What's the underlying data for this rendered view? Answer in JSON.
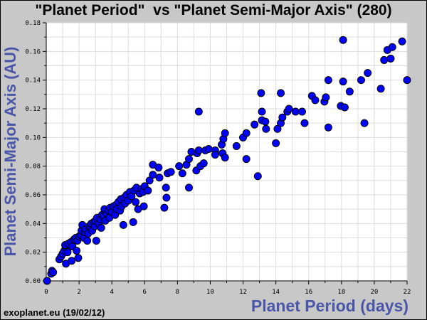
{
  "chart_data": {
    "type": "scatter",
    "title": "\"Planet Period\"  vs \"Planet Semi-Major Axis\" (280)",
    "xlabel": "Planet Period (days)",
    "ylabel": "Planet Semi-Major Axis (AU)",
    "xlim": [
      0,
      22
    ],
    "ylim": [
      0,
      0.18
    ],
    "grid": true,
    "xticks": [
      "0",
      "2",
      "4",
      "6",
      "8",
      "10",
      "12",
      "14",
      "16",
      "18",
      "20",
      "22"
    ],
    "yticks": [
      "0.00",
      "0.02",
      "0.04",
      "0.06",
      "0.08",
      "0.10",
      "0.12",
      "0.14",
      "0.16",
      "0.18"
    ],
    "marker_color": "#0000ff",
    "points": [
      [
        0.05,
        0.0
      ],
      [
        0.3,
        0.005
      ],
      [
        0.35,
        0.007
      ],
      [
        0.42,
        0.006
      ],
      [
        0.8,
        0.015
      ],
      [
        0.9,
        0.017
      ],
      [
        1.0,
        0.019
      ],
      [
        1.1,
        0.021
      ],
      [
        1.2,
        0.023
      ],
      [
        1.15,
        0.025
      ],
      [
        1.2,
        0.012
      ],
      [
        1.3,
        0.02
      ],
      [
        1.35,
        0.026
      ],
      [
        1.5,
        0.027
      ],
      [
        1.55,
        0.014
      ],
      [
        1.6,
        0.024
      ],
      [
        1.7,
        0.029
      ],
      [
        1.8,
        0.03
      ],
      [
        1.85,
        0.021
      ],
      [
        1.9,
        0.028
      ],
      [
        1.95,
        0.016
      ],
      [
        2.0,
        0.031
      ],
      [
        2.1,
        0.032
      ],
      [
        2.15,
        0.035
      ],
      [
        2.2,
        0.039
      ],
      [
        2.3,
        0.03
      ],
      [
        2.35,
        0.034
      ],
      [
        2.4,
        0.036
      ],
      [
        2.5,
        0.028
      ],
      [
        2.55,
        0.033
      ],
      [
        2.6,
        0.038
      ],
      [
        2.7,
        0.037
      ],
      [
        2.75,
        0.04
      ],
      [
        2.8,
        0.035
      ],
      [
        2.9,
        0.041
      ],
      [
        2.95,
        0.038
      ],
      [
        3.0,
        0.042
      ],
      [
        3.05,
        0.028
      ],
      [
        3.1,
        0.044
      ],
      [
        3.2,
        0.04
      ],
      [
        3.3,
        0.043
      ],
      [
        3.35,
        0.037
      ],
      [
        3.4,
        0.046
      ],
      [
        3.5,
        0.045
      ],
      [
        3.55,
        0.05
      ],
      [
        3.6,
        0.042
      ],
      [
        3.7,
        0.047
      ],
      [
        3.8,
        0.049
      ],
      [
        3.85,
        0.044
      ],
      [
        3.9,
        0.051
      ],
      [
        4.0,
        0.048
      ],
      [
        4.1,
        0.052
      ],
      [
        4.2,
        0.046
      ],
      [
        4.25,
        0.053
      ],
      [
        4.3,
        0.05
      ],
      [
        4.4,
        0.055
      ],
      [
        4.5,
        0.049
      ],
      [
        4.55,
        0.057
      ],
      [
        4.6,
        0.052
      ],
      [
        4.7,
        0.039
      ],
      [
        4.75,
        0.058
      ],
      [
        4.8,
        0.054
      ],
      [
        4.9,
        0.06
      ],
      [
        5.0,
        0.056
      ],
      [
        5.1,
        0.062
      ],
      [
        5.2,
        0.059
      ],
      [
        5.3,
        0.041
      ],
      [
        5.35,
        0.063
      ],
      [
        5.45,
        0.055
      ],
      [
        5.5,
        0.065
      ],
      [
        5.6,
        0.05
      ],
      [
        5.7,
        0.061
      ],
      [
        5.8,
        0.064
      ],
      [
        5.9,
        0.062
      ],
      [
        5.95,
        0.052
      ],
      [
        6.0,
        0.066
      ],
      [
        6.2,
        0.063
      ],
      [
        6.3,
        0.07
      ],
      [
        6.5,
        0.074
      ],
      [
        6.5,
        0.081
      ],
      [
        6.85,
        0.079
      ],
      [
        6.9,
        0.072
      ],
      [
        7.2,
        0.051
      ],
      [
        7.3,
        0.065
      ],
      [
        7.33,
        0.058
      ],
      [
        7.4,
        0.075
      ],
      [
        7.6,
        0.076
      ],
      [
        8.1,
        0.08
      ],
      [
        8.3,
        0.075
      ],
      [
        8.55,
        0.081
      ],
      [
        8.7,
        0.085
      ],
      [
        8.7,
        0.065
      ],
      [
        8.85,
        0.09
      ],
      [
        9.15,
        0.077
      ],
      [
        9.2,
        0.089
      ],
      [
        9.3,
        0.091
      ],
      [
        9.3,
        0.118
      ],
      [
        9.4,
        0.08
      ],
      [
        9.6,
        0.082
      ],
      [
        9.7,
        0.091
      ],
      [
        9.9,
        0.092
      ],
      [
        10.3,
        0.091
      ],
      [
        10.3,
        0.088
      ],
      [
        10.7,
        0.095
      ],
      [
        10.75,
        0.089
      ],
      [
        10.8,
        0.099
      ],
      [
        10.9,
        0.103
      ],
      [
        10.9,
        0.086
      ],
      [
        11.6,
        0.094
      ],
      [
        12.0,
        0.1
      ],
      [
        12.2,
        0.103
      ],
      [
        12.2,
        0.085
      ],
      [
        12.7,
        0.109
      ],
      [
        12.9,
        0.073
      ],
      [
        13.1,
        0.131
      ],
      [
        13.15,
        0.118
      ],
      [
        13.15,
        0.112
      ],
      [
        13.36,
        0.111
      ],
      [
        13.4,
        0.106
      ],
      [
        14.0,
        0.096
      ],
      [
        14.1,
        0.106
      ],
      [
        14.3,
        0.11
      ],
      [
        14.3,
        0.131
      ],
      [
        14.4,
        0.114
      ],
      [
        14.7,
        0.118
      ],
      [
        14.8,
        0.12
      ],
      [
        15.2,
        0.118
      ],
      [
        15.6,
        0.118
      ],
      [
        15.75,
        0.11
      ],
      [
        16.2,
        0.129
      ],
      [
        16.4,
        0.126
      ],
      [
        16.96,
        0.125
      ],
      [
        17.05,
        0.128
      ],
      [
        17.2,
        0.14
      ],
      [
        17.2,
        0.107
      ],
      [
        17.96,
        0.122
      ],
      [
        18.1,
        0.168
      ],
      [
        18.1,
        0.139
      ],
      [
        18.2,
        0.121
      ],
      [
        18.5,
        0.132
      ],
      [
        19.2,
        0.14
      ],
      [
        19.4,
        0.11
      ],
      [
        19.6,
        0.145
      ],
      [
        20.4,
        0.134
      ],
      [
        20.6,
        0.154
      ],
      [
        20.8,
        0.161
      ],
      [
        21.0,
        0.155
      ],
      [
        21.1,
        0.163
      ],
      [
        21.7,
        0.167
      ],
      [
        22.0,
        0.14
      ]
    ]
  },
  "footer": "exoplanet.eu (19/02/12)"
}
